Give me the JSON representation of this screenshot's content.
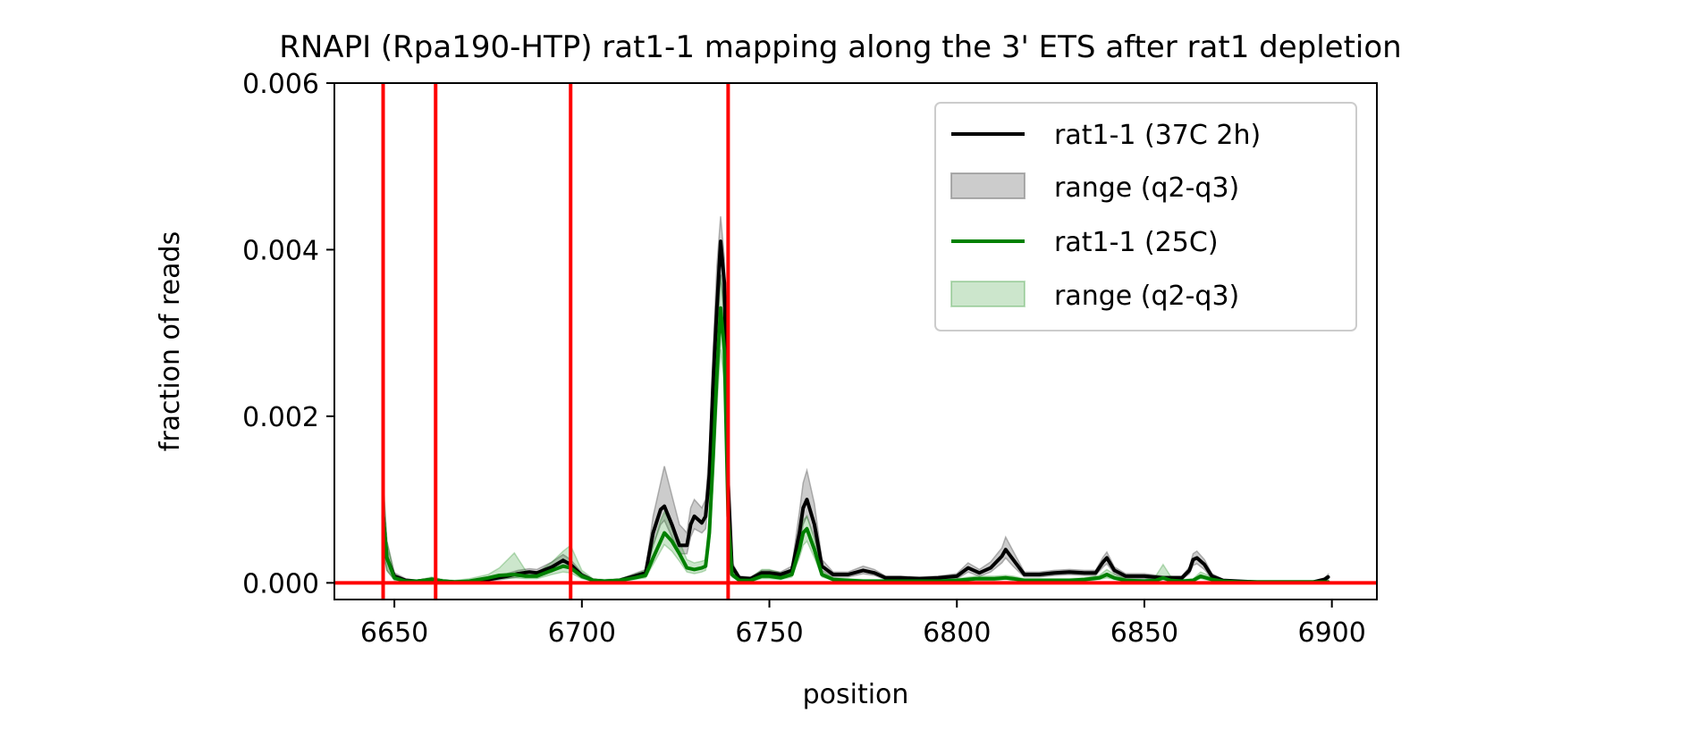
{
  "chart_data": {
    "type": "line",
    "title": "RNAPI (Rpa190-HTP) rat1-1 mapping along the 3' ETS after rat1 depletion",
    "xlabel": "position",
    "ylabel": "fraction of reads",
    "xlim": [
      6634,
      6912
    ],
    "ylim": [
      -0.0002,
      0.006
    ],
    "xticks": [
      6650,
      6700,
      6750,
      6800,
      6850,
      6900
    ],
    "yticks": [
      0.0,
      0.002,
      0.004,
      0.006
    ],
    "xtick_labels": [
      "6650",
      "6700",
      "6750",
      "6800",
      "6850",
      "6900"
    ],
    "ytick_labels": [
      "0.000",
      "0.002",
      "0.004",
      "0.006"
    ],
    "grid": false,
    "legend_position": "top-right",
    "vlines": [
      6647,
      6661,
      6697,
      6739
    ],
    "hline": 0.0,
    "reference_line_color": "#ff0000",
    "series": [
      {
        "name": "rat1-1 (37C 2h)",
        "color": "#000000",
        "band_name": "range (q2-q3)",
        "band_color": "#808080",
        "x": [
          6647,
          6648,
          6650,
          6653,
          6656,
          6660,
          6663,
          6666,
          6670,
          6675,
          6680,
          6683,
          6686,
          6688,
          6692,
          6695,
          6697,
          6700,
          6703,
          6706,
          6710,
          6714,
          6717,
          6719,
          6721,
          6722,
          6724,
          6726,
          6728,
          6729,
          6730,
          6732,
          6733,
          6734,
          6735,
          6736,
          6737,
          6738,
          6739,
          6740,
          6742,
          6745,
          6748,
          6750,
          6753,
          6756,
          6758,
          6759,
          6760,
          6762,
          6764,
          6767,
          6771,
          6775,
          6778,
          6781,
          6785,
          6790,
          6795,
          6800,
          6803,
          6806,
          6809,
          6812,
          6813,
          6815,
          6818,
          6822,
          6826,
          6830,
          6834,
          6837,
          6839,
          6840,
          6842,
          6845,
          6850,
          6855,
          6860,
          6862,
          6863,
          6864,
          6866,
          6868,
          6871,
          6875,
          6880,
          6885,
          6890,
          6895,
          6898,
          6899
        ],
        "values": [
          0.0008,
          0.0003,
          8e-05,
          3e-05,
          2e-05,
          4e-05,
          2e-05,
          1e-05,
          1e-05,
          4e-05,
          8e-05,
          0.00011,
          0.00013,
          0.00012,
          0.00019,
          0.00027,
          0.00022,
          9e-05,
          3e-05,
          2e-05,
          3e-05,
          8e-05,
          0.00012,
          0.0006,
          0.00088,
          0.00092,
          0.0007,
          0.00045,
          0.00045,
          0.0007,
          0.0008,
          0.00072,
          0.0008,
          0.0013,
          0.0024,
          0.0033,
          0.0041,
          0.0036,
          0.0012,
          0.0002,
          6e-05,
          5e-05,
          0.00012,
          0.00012,
          0.0001,
          0.00015,
          0.0006,
          0.0009,
          0.001,
          0.0007,
          0.0002,
          0.0001,
          0.0001,
          0.00015,
          0.00012,
          6e-05,
          6e-05,
          5e-05,
          6e-05,
          8e-05,
          0.00018,
          0.00012,
          0.00018,
          0.00032,
          0.0004,
          0.00028,
          0.0001,
          0.0001,
          0.00012,
          0.00013,
          0.00012,
          0.00012,
          0.00025,
          0.0003,
          0.00015,
          8e-05,
          8e-05,
          6e-05,
          6e-05,
          0.00015,
          0.00028,
          0.0003,
          0.00022,
          8e-05,
          3e-05,
          2e-05,
          1e-05,
          1e-05,
          1e-05,
          1e-05,
          4e-05,
          7e-05
        ],
        "lower": [
          0.0004,
          0.00015,
          4e-05,
          2e-05,
          1e-05,
          2e-05,
          1e-05,
          1e-05,
          1e-05,
          2e-05,
          5e-05,
          7e-05,
          9e-05,
          8e-05,
          0.00013,
          0.0002,
          0.00016,
          6e-05,
          2e-05,
          1e-05,
          2e-05,
          5e-05,
          8e-05,
          0.00045,
          0.0007,
          0.00075,
          0.00055,
          0.00035,
          0.00035,
          0.00055,
          0.00065,
          0.0006,
          0.00065,
          0.0011,
          0.0021,
          0.0029,
          0.0037,
          0.0032,
          0.001,
          0.00015,
          4e-05,
          3e-05,
          9e-05,
          9e-05,
          7e-05,
          0.00011,
          0.00045,
          0.0007,
          0.0008,
          0.00055,
          0.00015,
          7e-05,
          7e-05,
          0.00011,
          9e-05,
          4e-05,
          4e-05,
          3e-05,
          4e-05,
          5e-05,
          0.00013,
          8e-05,
          0.00013,
          0.00024,
          0.0003,
          0.0002,
          7e-05,
          7e-05,
          9e-05,
          0.0001,
          9e-05,
          9e-05,
          0.00019,
          0.00023,
          0.00011,
          5e-05,
          5e-05,
          4e-05,
          4e-05,
          0.00011,
          0.00021,
          0.00023,
          0.00016,
          5e-05,
          2e-05,
          1e-05,
          0.0,
          0.0,
          0.0,
          0.0,
          2e-05,
          4e-05
        ],
        "upper": [
          0.0012,
          0.0005,
          0.00012,
          5e-05,
          3e-05,
          6e-05,
          3e-05,
          2e-05,
          2e-05,
          6e-05,
          0.00011,
          0.00015,
          0.00017,
          0.00016,
          0.00025,
          0.00034,
          0.00028,
          0.00012,
          4e-05,
          3e-05,
          4e-05,
          0.00011,
          0.00016,
          0.0008,
          0.0012,
          0.0014,
          0.00105,
          0.0007,
          0.0006,
          0.0009,
          0.001,
          0.0009,
          0.001,
          0.0016,
          0.0028,
          0.0038,
          0.0044,
          0.0039,
          0.0014,
          0.00025,
          8e-05,
          7e-05,
          0.00015,
          0.00015,
          0.00013,
          0.0002,
          0.00085,
          0.0012,
          0.00135,
          0.00095,
          0.00028,
          0.00013,
          0.00013,
          0.0002,
          0.00016,
          8e-05,
          8e-05,
          7e-05,
          8e-05,
          0.00011,
          0.00024,
          0.00016,
          0.00025,
          0.00042,
          0.00055,
          0.00038,
          0.00013,
          0.00013,
          0.00015,
          0.00016,
          0.00015,
          0.00015,
          0.00031,
          0.00037,
          0.00019,
          0.00011,
          0.00011,
          8e-05,
          8e-05,
          0.00019,
          0.00035,
          0.00038,
          0.00028,
          0.00011,
          4e-05,
          3e-05,
          2e-05,
          2e-05,
          2e-05,
          2e-05,
          6e-05,
          0.0001
        ]
      },
      {
        "name": "rat1-1 (25C)",
        "color": "#008000",
        "band_name": "range (q2-q3)",
        "band_color": "#008000",
        "x": [
          6647,
          6648,
          6650,
          6653,
          6656,
          6660,
          6663,
          6666,
          6670,
          6675,
          6678,
          6682,
          6685,
          6688,
          6692,
          6695,
          6697,
          6700,
          6703,
          6706,
          6710,
          6714,
          6717,
          6719,
          6721,
          6722,
          6724,
          6726,
          6728,
          6730,
          6732,
          6733,
          6734,
          6735,
          6736,
          6737,
          6738,
          6739,
          6740,
          6742,
          6745,
          6748,
          6750,
          6753,
          6756,
          6758,
          6759,
          6760,
          6762,
          6764,
          6767,
          6771,
          6775,
          6780,
          6785,
          6790,
          6795,
          6800,
          6805,
          6810,
          6813,
          6815,
          6818,
          6822,
          6826,
          6830,
          6834,
          6838,
          6840,
          6842,
          6845,
          6850,
          6853,
          6855,
          6857,
          6860,
          6863,
          6865,
          6868,
          6871,
          6875,
          6880,
          6885,
          6890,
          6895,
          6899
        ],
        "values": [
          0.0008,
          0.0003,
          6e-05,
          2e-05,
          2e-05,
          4e-05,
          2e-05,
          1e-05,
          2e-05,
          6e-05,
          9e-05,
          0.0001,
          8e-05,
          8e-05,
          0.00015,
          0.0002,
          0.00018,
          8e-05,
          3e-05,
          2e-05,
          3e-05,
          6e-05,
          9e-05,
          0.0003,
          0.0005,
          0.0006,
          0.0005,
          0.00035,
          0.00018,
          0.00016,
          0.00018,
          0.0002,
          0.0006,
          0.0015,
          0.0025,
          0.0033,
          0.0028,
          0.0008,
          0.0001,
          3e-05,
          3e-05,
          8e-05,
          8e-05,
          6e-05,
          0.0001,
          0.0004,
          0.0006,
          0.00065,
          0.0004,
          0.0001,
          4e-05,
          3e-05,
          2e-05,
          2e-05,
          2e-05,
          2e-05,
          2e-05,
          3e-05,
          5e-05,
          5e-05,
          6e-05,
          5e-05,
          3e-05,
          3e-05,
          3e-05,
          3e-05,
          4e-05,
          6e-05,
          0.0001,
          6e-05,
          3e-05,
          2e-05,
          3e-05,
          6e-05,
          3e-05,
          2e-05,
          3e-05,
          8e-05,
          4e-05,
          2e-05,
          1e-05,
          1e-05,
          1e-05,
          1e-05,
          1e-05,
          1e-05
        ],
        "lower": [
          0.0004,
          0.00015,
          3e-05,
          1e-05,
          1e-05,
          2e-05,
          1e-05,
          0.0,
          1e-05,
          3e-05,
          5e-05,
          6e-05,
          5e-05,
          5e-05,
          0.0001,
          0.00013,
          0.00012,
          5e-05,
          2e-05,
          1e-05,
          2e-05,
          4e-05,
          6e-05,
          0.00022,
          0.00038,
          0.00046,
          0.00038,
          0.00026,
          0.00013,
          0.00011,
          0.00013,
          0.00015,
          0.00045,
          0.0012,
          0.0021,
          0.0028,
          0.0024,
          0.00065,
          7e-05,
          2e-05,
          2e-05,
          5e-05,
          5e-05,
          4e-05,
          7e-05,
          0.0003,
          0.00045,
          0.0005,
          0.0003,
          7e-05,
          3e-05,
          2e-05,
          1e-05,
          1e-05,
          1e-05,
          1e-05,
          1e-05,
          2e-05,
          3e-05,
          3e-05,
          4e-05,
          3e-05,
          2e-05,
          2e-05,
          2e-05,
          2e-05,
          2e-05,
          4e-05,
          6e-05,
          4e-05,
          2e-05,
          1e-05,
          2e-05,
          4e-05,
          2e-05,
          1e-05,
          2e-05,
          5e-05,
          2e-05,
          1e-05,
          0.0,
          0.0,
          0.0,
          0.0,
          0.0,
          0.0
        ],
        "upper": [
          0.0013,
          0.0005,
          0.0001,
          4e-05,
          3e-05,
          7e-05,
          4e-05,
          3e-05,
          5e-05,
          0.0001,
          0.00018,
          0.00036,
          0.00015,
          0.00012,
          0.00025,
          0.00038,
          0.00045,
          0.00015,
          5e-05,
          4e-05,
          5e-05,
          0.0001,
          0.00015,
          0.00045,
          0.00075,
          0.00085,
          0.0007,
          0.0005,
          0.00028,
          0.00024,
          0.00026,
          0.00028,
          0.0008,
          0.0018,
          0.0029,
          0.0037,
          0.0032,
          0.001,
          0.00014,
          5e-05,
          6e-05,
          0.00016,
          0.00016,
          0.00012,
          0.00016,
          0.0005,
          0.00075,
          0.0008,
          0.00052,
          0.00014,
          6e-05,
          5e-05,
          4e-05,
          4e-05,
          3e-05,
          3e-05,
          4e-05,
          5e-05,
          8e-05,
          8e-05,
          9e-05,
          8e-05,
          5e-05,
          5e-05,
          5e-05,
          5e-05,
          6e-05,
          9e-05,
          0.00016,
          0.0001,
          5e-05,
          4e-05,
          8e-05,
          0.00022,
          8e-05,
          4e-05,
          5e-05,
          0.00013,
          7e-05,
          4e-05,
          2e-05,
          2e-05,
          2e-05,
          2e-05,
          2e-05,
          2e-05
        ]
      }
    ]
  }
}
